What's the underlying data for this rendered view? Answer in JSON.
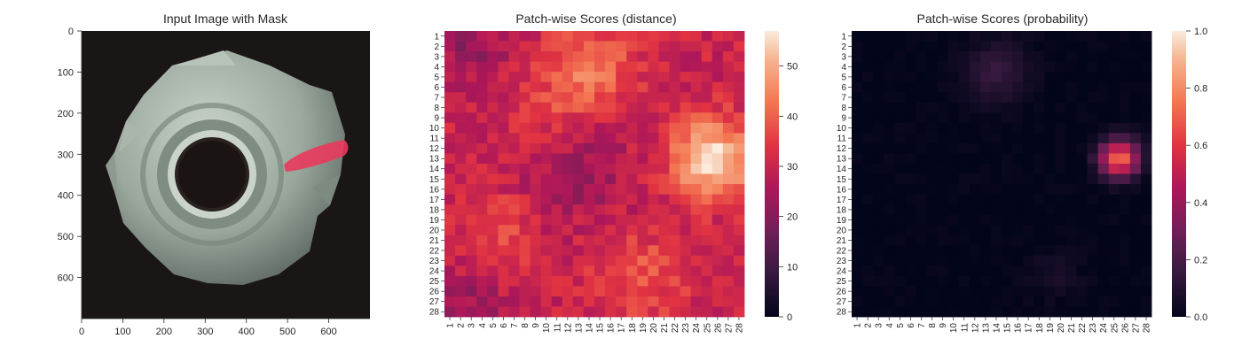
{
  "chart_data": [
    {
      "type": "image",
      "title": "Input Image with Mask",
      "xlim": [
        0,
        700
      ],
      "ylim": [
        0,
        700
      ],
      "xticks": [
        "0",
        "100",
        "200",
        "300",
        "400",
        "500",
        "600"
      ],
      "yticks": [
        "0",
        "100",
        "200",
        "300",
        "400",
        "500",
        "600"
      ],
      "image_description": "metal nut photographed from above on dark background",
      "mask_color": "#e83a5c"
    },
    {
      "type": "heatmap",
      "title": "Patch-wise Scores (distance)",
      "rows": 28,
      "cols": 28,
      "colorbar": {
        "min": 0,
        "max": 57,
        "ticks": [
          "0",
          "10",
          "20",
          "30",
          "40",
          "50"
        ]
      },
      "base_value": 30,
      "hotspots": [
        {
          "row": 13,
          "col": 25.5,
          "peak": 27,
          "spread": 2.6
        },
        {
          "row": 4.5,
          "col": 14,
          "peak": 13,
          "spread": 3.0
        },
        {
          "row": 24.5,
          "col": 19,
          "peak": 9,
          "spread": 2.8
        },
        {
          "row": 20,
          "col": 5.5,
          "peak": 7,
          "spread": 2.5
        },
        {
          "row": 9,
          "col": 10,
          "peak": 5,
          "spread": 2.5
        },
        {
          "row": 14,
          "col": 13,
          "peak": -7,
          "spread": 3.5
        },
        {
          "row": 2,
          "col": 3,
          "peak": -8,
          "spread": 2.5
        },
        {
          "row": 27,
          "col": 3,
          "peak": -6,
          "spread": 2.5
        }
      ]
    },
    {
      "type": "heatmap",
      "title": "Patch-wise Scores (probability)",
      "rows": 28,
      "cols": 28,
      "colorbar": {
        "min": 0.0,
        "max": 1.0,
        "ticks": [
          "0.0",
          "0.2",
          "0.4",
          "0.6",
          "0.8",
          "1.0"
        ]
      },
      "base_value": 0.0,
      "hotspots": [
        {
          "row": 13,
          "col": 25.5,
          "peak": 0.72,
          "spread": 1.3
        },
        {
          "row": 4.5,
          "col": 14,
          "peak": 0.15,
          "spread": 2.2
        },
        {
          "row": 24.5,
          "col": 19.5,
          "peak": 0.06,
          "spread": 1.8
        }
      ]
    }
  ]
}
